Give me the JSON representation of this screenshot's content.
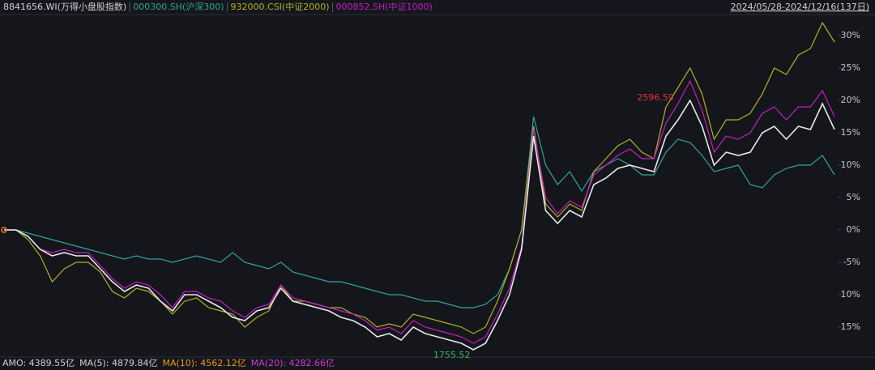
{
  "chart_data": {
    "type": "line",
    "title": "8841656.WI(万得小盘股指数)",
    "date_range": "2024/05/28-2024/12/16(137日)",
    "ylim": [
      -19.5,
      33
    ],
    "yticks": [
      {
        "value": -15,
        "label": "-15%"
      },
      {
        "value": -10,
        "label": "-10%"
      },
      {
        "value": -5,
        "label": "-5%"
      },
      {
        "value": 0,
        "label": "0%"
      },
      {
        "value": 5,
        "label": "5%"
      },
      {
        "value": 10,
        "label": "10%"
      },
      {
        "value": 15,
        "label": "15%"
      },
      {
        "value": 20,
        "label": "20%"
      },
      {
        "value": 25,
        "label": "25%"
      },
      {
        "value": 30,
        "label": "30%"
      }
    ],
    "series": [
      {
        "name": "8841656.WI(万得小盘股指数)",
        "color": "#e8e8e8",
        "values": [
          0,
          0,
          -1,
          -3,
          -4,
          -3.5,
          -4,
          -4,
          -6,
          -8,
          -9.5,
          -8.5,
          -9,
          -11,
          -12.5,
          -10,
          -10,
          -11,
          -12,
          -13.5,
          -14,
          -12.5,
          -12,
          -9,
          -11,
          -11.5,
          -12,
          -12.5,
          -13.5,
          -14,
          -15,
          -16.5,
          -16,
          -17,
          -15,
          -16,
          -16.5,
          -17,
          -17.5,
          -18.5,
          -17.5,
          -14,
          -10,
          -3,
          14.5,
          3,
          1,
          3,
          2,
          7,
          8,
          9.5,
          10,
          9.5,
          9,
          14.5,
          17,
          20,
          16,
          10,
          12,
          11.5,
          12,
          15,
          16,
          14,
          16,
          15.5,
          19.5,
          15.5
        ]
      },
      {
        "name": "000300.SH(沪深300)",
        "color": "#2fa39a",
        "values": [
          0,
          0,
          -0.5,
          -1,
          -1.5,
          -2,
          -2.5,
          -3,
          -3.5,
          -4,
          -4.5,
          -4,
          -4.5,
          -4.5,
          -5,
          -4.5,
          -4,
          -4.5,
          -5,
          -3.5,
          -5,
          -5.5,
          -6,
          -5,
          -6.5,
          -7,
          -7.5,
          -8,
          -8,
          -8.5,
          -9,
          -9.5,
          -10,
          -10,
          -10.5,
          -11,
          -11,
          -11.5,
          -12,
          -12,
          -11.5,
          -10,
          -6,
          0,
          17.5,
          10,
          7,
          9,
          6,
          9,
          10,
          11,
          10,
          8.5,
          8.5,
          12,
          14,
          13.5,
          11.5,
          9,
          9.5,
          10,
          7,
          6.5,
          8.5,
          9.5,
          10,
          10,
          11.5,
          8.5
        ]
      },
      {
        "name": "932000.CSI(中证2000)",
        "color": "#b5b020",
        "values": [
          0,
          0,
          -1.5,
          -4,
          -8,
          -6,
          -5,
          -5,
          -6.5,
          -9.5,
          -10.5,
          -9,
          -9.5,
          -11,
          -13,
          -11,
          -10.5,
          -12,
          -12.5,
          -13,
          -15,
          -13.5,
          -12.5,
          -8.5,
          -11,
          -11,
          -11.5,
          -12,
          -12,
          -13,
          -13.5,
          -15,
          -14.5,
          -15,
          -13,
          -13.5,
          -14,
          -14.5,
          -15,
          -16,
          -15,
          -11,
          -6,
          0,
          16,
          4,
          2,
          4,
          3,
          9,
          11,
          13,
          14,
          12,
          11,
          19,
          22,
          25,
          21,
          14,
          17,
          17,
          18,
          21,
          25,
          24,
          27,
          28,
          32,
          29
        ]
      },
      {
        "name": "000852.SH(中证1000)",
        "color": "#c21fc2",
        "values": [
          0,
          0,
          -1,
          -3,
          -3.5,
          -3,
          -3.5,
          -3.5,
          -5.5,
          -7.5,
          -9,
          -8,
          -8.5,
          -10,
          -12,
          -9.5,
          -9.5,
          -10.5,
          -11,
          -12.5,
          -13.5,
          -12,
          -11.5,
          -8.5,
          -10.5,
          -11,
          -11.5,
          -12,
          -12.5,
          -13,
          -14,
          -15.5,
          -15,
          -16,
          -14,
          -15,
          -15.5,
          -16,
          -16.5,
          -17.5,
          -16.5,
          -13,
          -9,
          -2.5,
          15.5,
          5,
          2.5,
          4.5,
          3.5,
          8.5,
          10,
          11.5,
          12.5,
          11,
          11,
          16.5,
          19.5,
          23,
          18.5,
          12,
          14.5,
          14,
          15,
          18,
          19,
          17,
          19,
          19,
          21.5,
          17.5
        ]
      }
    ],
    "max_label": "2596.59",
    "max_color": "#e0333a",
    "min_label": "1755.52",
    "min_color": "#2fb860",
    "footer": [
      "AMO: 4389.55亿",
      "MA(5): 4879.84亿",
      "MA(10): 4562.12亿",
      "MA(20): 4282.66亿"
    ],
    "footer_colors": [
      "#d0d0d0",
      "#d0d0d0",
      "#e89a1c",
      "#d23bd2"
    ]
  }
}
